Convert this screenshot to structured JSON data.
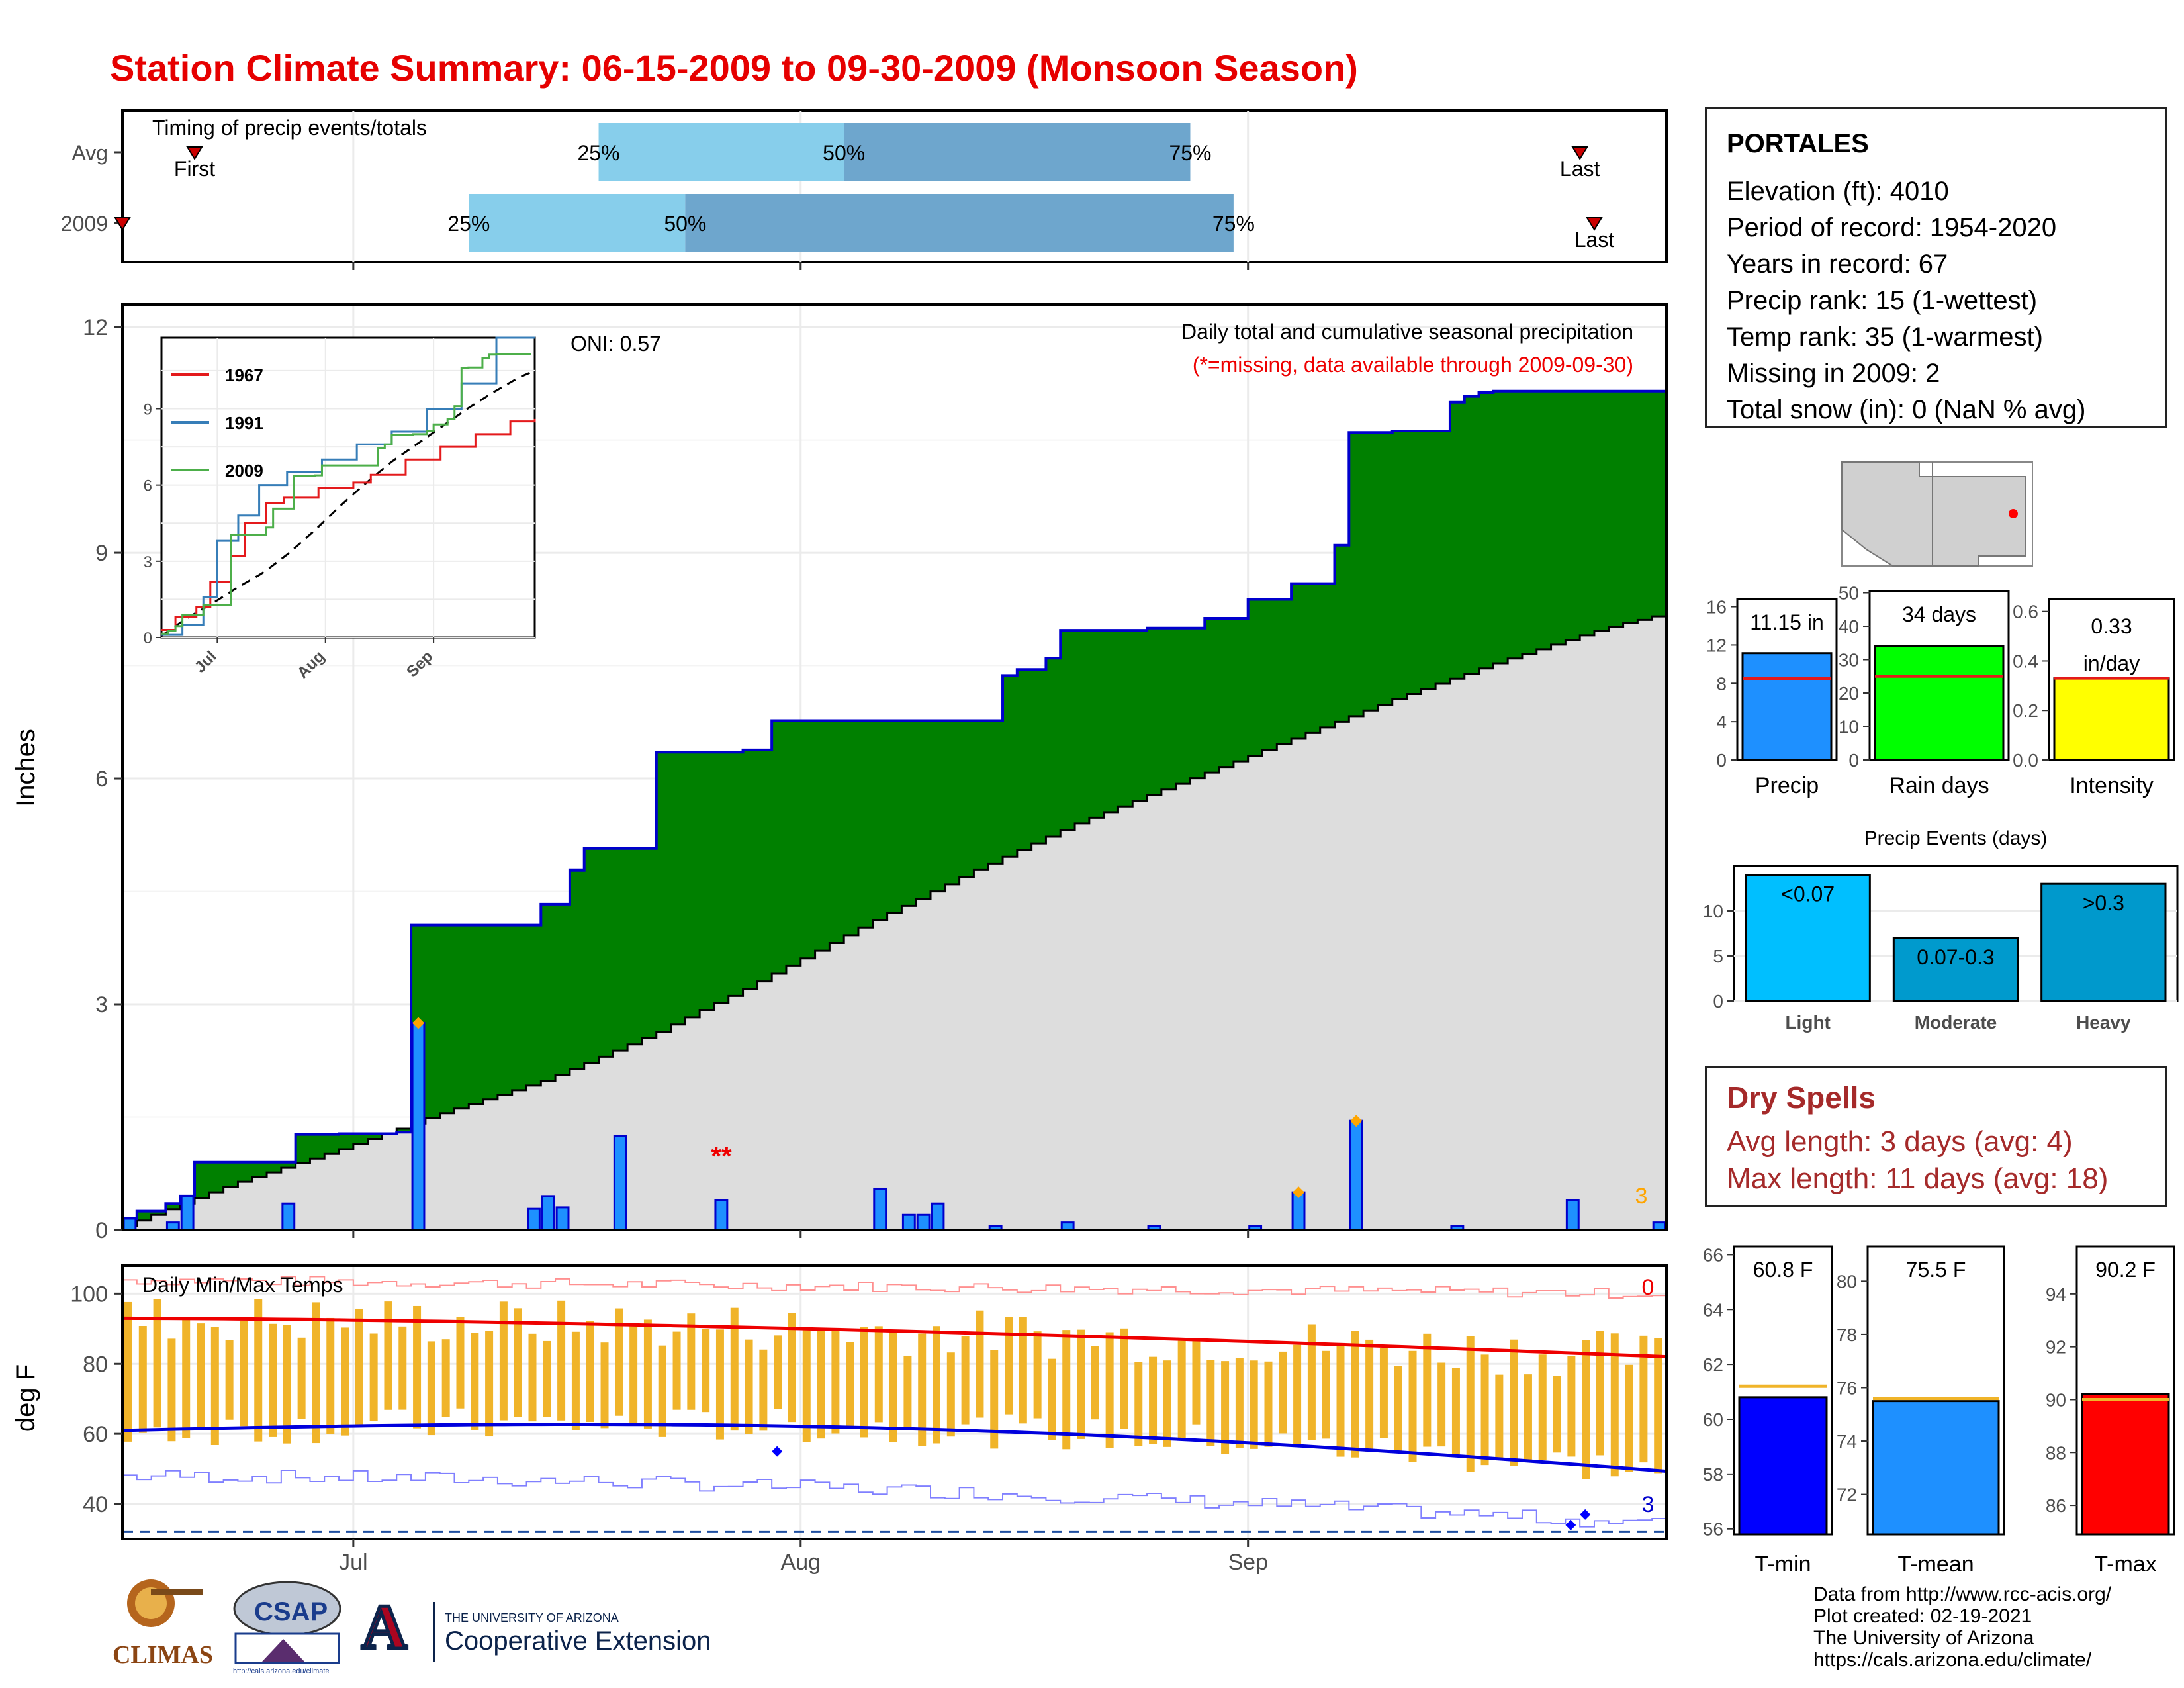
{
  "title": "Station Climate Summary: 06-15-2009 to 09-30-2009 (Monsoon Season)",
  "station": {
    "name": "PORTALES",
    "lines": [
      "Elevation (ft): 4010",
      "Period of record: 1954-2020",
      "Years in record: 67",
      "Precip rank: 15 (1-wettest)",
      "Temp rank: 35 (1-warmest)",
      "Missing in 2009: 2",
      "Total snow (in): 0 (NaN % avg)"
    ]
  },
  "timing": {
    "title": "Timing of precip events/totals",
    "rows": [
      {
        "label": "Avg",
        "first": "First",
        "last": "Last",
        "p25": "25%",
        "p50": "50%",
        "p75": "75%"
      },
      {
        "label": "2009",
        "first": "First",
        "last": "Last",
        "p25": "25%",
        "p50": "50%",
        "p75": "75%"
      }
    ]
  },
  "main_plot": {
    "ylabel": "Inches",
    "oni": "ONI: 0.57",
    "caption1": "Daily total and cumulative seasonal precipitation",
    "caption2": "(*=missing, data available through 2009-09-30)",
    "missing_marks": "**",
    "corner_count": "3",
    "yticks": [
      "0",
      "3",
      "6",
      "9",
      "12"
    ]
  },
  "months": [
    "Jul",
    "Aug",
    "Sep"
  ],
  "inset": {
    "legend": [
      "1967",
      "1991",
      "2009"
    ],
    "yticks": [
      "0",
      "3",
      "6",
      "9"
    ],
    "colors": {
      "1967": "#e41a1c",
      "1991": "#377eb8",
      "2009": "#4daf4a"
    }
  },
  "temps": {
    "title": "Daily Min/Max Temps",
    "ylabel": "deg F",
    "yticks": [
      "40",
      "60",
      "80",
      "100"
    ],
    "corner_top": "0",
    "corner_bottom": "3"
  },
  "bars_small": [
    {
      "label": "Precip",
      "value_text": "11.15 in",
      "yticks": [
        "0",
        "4",
        "8",
        "12",
        "16"
      ],
      "color": "#1e90ff"
    },
    {
      "label": "Rain days",
      "value_text": "34 days",
      "yticks": [
        "0",
        "10",
        "20",
        "30",
        "40",
        "50"
      ],
      "color": "#00ff00"
    },
    {
      "label": "Intensity",
      "value_text_1": "0.33",
      "value_text_2": "in/day",
      "yticks": [
        "0.0",
        "0.2",
        "0.4",
        "0.6"
      ],
      "color": "#ffff00"
    }
  ],
  "events": {
    "title": "Precip Events (days)",
    "categories": [
      "Light",
      "Moderate",
      "Heavy"
    ],
    "labels": [
      "<0.07",
      "0.07-0.3",
      ">0.3"
    ],
    "yticks": [
      "0",
      "5",
      "10"
    ],
    "colors": [
      "#00bfff",
      "#009acd",
      "#0099cc"
    ]
  },
  "dry_spells": {
    "title": "Dry Spells",
    "avg": "Avg length: 3 days (avg: 4)",
    "max": "Max length: 11 days (avg: 18)"
  },
  "temp_bars": [
    {
      "label": "T-min",
      "value_text": "60.8 F",
      "yticks": [
        "56",
        "58",
        "60",
        "62",
        "64",
        "66"
      ],
      "color": "#0000ff"
    },
    {
      "label": "T-mean",
      "value_text": "75.5 F",
      "yticks": [
        "72",
        "74",
        "76",
        "78",
        "80"
      ],
      "color": "#1e90ff"
    },
    {
      "label": "T-max",
      "value_text": "90.2 F",
      "yticks": [
        "86",
        "88",
        "90",
        "92",
        "94"
      ],
      "color": "#ff0000"
    }
  ],
  "credits": [
    "Data from http://www.rcc-acis.org/",
    "Plot created: 02-19-2021",
    "The University of Arizona",
    "https://cals.arizona.edu/climate/"
  ],
  "logos": {
    "climas": "CLIMAS",
    "csap": "CSAP",
    "csap_url": "http://cals.arizona.edu/climate",
    "ua_line1": "THE UNIVERSITY OF ARIZONA",
    "ua_line2": "Cooperative Extension"
  },
  "chart_data": [
    {
      "type": "bar",
      "title": "Timing of precip events/totals",
      "categories": [
        "Avg",
        "2009"
      ],
      "series": [
        {
          "name": "25%",
          "values": [
            "2009-07-18",
            "2009-07-09"
          ]
        },
        {
          "name": "50%",
          "values": [
            "2009-08-04",
            "2009-07-24"
          ]
        },
        {
          "name": "75%",
          "values": [
            "2009-08-28",
            "2009-08-31"
          ]
        }
      ],
      "first": [
        "2009-06-20",
        "2009-06-15"
      ],
      "last": [
        "2009-09-24",
        "2009-09-25"
      ]
    },
    {
      "type": "area",
      "title": "Daily total and cumulative seasonal precipitation",
      "ylabel": "Inches",
      "ylim": [
        0,
        12.3
      ],
      "x_start": "2009-06-15",
      "x_end": "2009-09-30",
      "cumulative_2009_steps": [
        [
          0,
          0.15
        ],
        [
          2,
          0.25
        ],
        [
          4,
          0.35
        ],
        [
          6,
          0.45
        ],
        [
          7,
          0.9
        ],
        [
          17,
          1.27
        ],
        [
          20,
          1.28
        ],
        [
          26,
          1.3
        ],
        [
          27,
          4.05
        ],
        [
          38,
          4.05
        ],
        [
          39,
          4.33
        ],
        [
          42,
          4.78
        ],
        [
          43,
          5.07
        ],
        [
          50,
          6.35
        ],
        [
          58,
          6.38
        ],
        [
          61,
          6.77
        ],
        [
          82,
          6.77
        ],
        [
          83,
          7.37
        ],
        [
          85,
          7.45
        ],
        [
          88,
          7.6
        ],
        [
          89,
          7.97
        ],
        [
          97,
          8.0
        ],
        [
          102,
          8.13
        ],
        [
          106,
          8.38
        ],
        [
          110,
          8.59
        ],
        [
          114,
          9.1
        ],
        [
          116,
          10.6
        ],
        [
          120,
          10.62
        ],
        [
          125,
          11.0
        ],
        [
          127,
          11.08
        ],
        [
          128,
          11.13
        ],
        [
          130,
          11.15
        ],
        [
          146,
          11.15
        ]
      ],
      "average_cumulative": [
        [
          0,
          0.05
        ],
        [
          10,
          0.6
        ],
        [
          20,
          1.05
        ],
        [
          30,
          1.55
        ],
        [
          40,
          2.0
        ],
        [
          50,
          2.6
        ],
        [
          60,
          3.3
        ],
        [
          70,
          4.05
        ],
        [
          80,
          4.75
        ],
        [
          90,
          5.4
        ],
        [
          100,
          5.95
        ],
        [
          110,
          6.5
        ],
        [
          120,
          7.05
        ],
        [
          130,
          7.55
        ],
        [
          140,
          8.0
        ],
        [
          146,
          8.2
        ]
      ],
      "daily_bars": [
        [
          0,
          0.15
        ],
        [
          4,
          0.1
        ],
        [
          6,
          0.45
        ],
        [
          15,
          0.35
        ],
        [
          27,
          2.75
        ],
        [
          38,
          0.28
        ],
        [
          40,
          0.45
        ],
        [
          41,
          0.3
        ],
        [
          46,
          1.25
        ],
        [
          56,
          0.4
        ],
        [
          71,
          0.55
        ],
        [
          73,
          0.2
        ],
        [
          75,
          0.2
        ],
        [
          76,
          0.35
        ],
        [
          82,
          0.05
        ],
        [
          89,
          0.1
        ],
        [
          97,
          0.05
        ],
        [
          106,
          0.05
        ],
        [
          110,
          0.5
        ],
        [
          116,
          1.45
        ],
        [
          126,
          0.05
        ],
        [
          136,
          0.4
        ],
        [
          144,
          0.1
        ]
      ]
    },
    {
      "type": "line",
      "title": "Daily Min/Max Temps",
      "ylabel": "deg F",
      "ylim": [
        30,
        108
      ],
      "series": [
        {
          "name": "avg max",
          "values_first_last": [
            93,
            82
          ]
        },
        {
          "name": "avg min",
          "values_first_last": [
            60,
            50
          ]
        }
      ]
    },
    {
      "type": "bar",
      "categories": [
        "Precip",
        "Rain days",
        "Intensity"
      ],
      "values": [
        11.15,
        34,
        0.33
      ],
      "averages": [
        8.5,
        25,
        0.33
      ]
    },
    {
      "type": "bar",
      "title": "Precip Events (days)",
      "categories": [
        "Light",
        "Moderate",
        "Heavy"
      ],
      "values": [
        14,
        7,
        13
      ],
      "ylim": [
        0,
        15
      ]
    },
    {
      "type": "bar",
      "categories": [
        "T-min",
        "T-mean",
        "T-max"
      ],
      "values": [
        60.8,
        75.5,
        90.2
      ],
      "averages": [
        61.2,
        75.6,
        90.0
      ]
    }
  ]
}
